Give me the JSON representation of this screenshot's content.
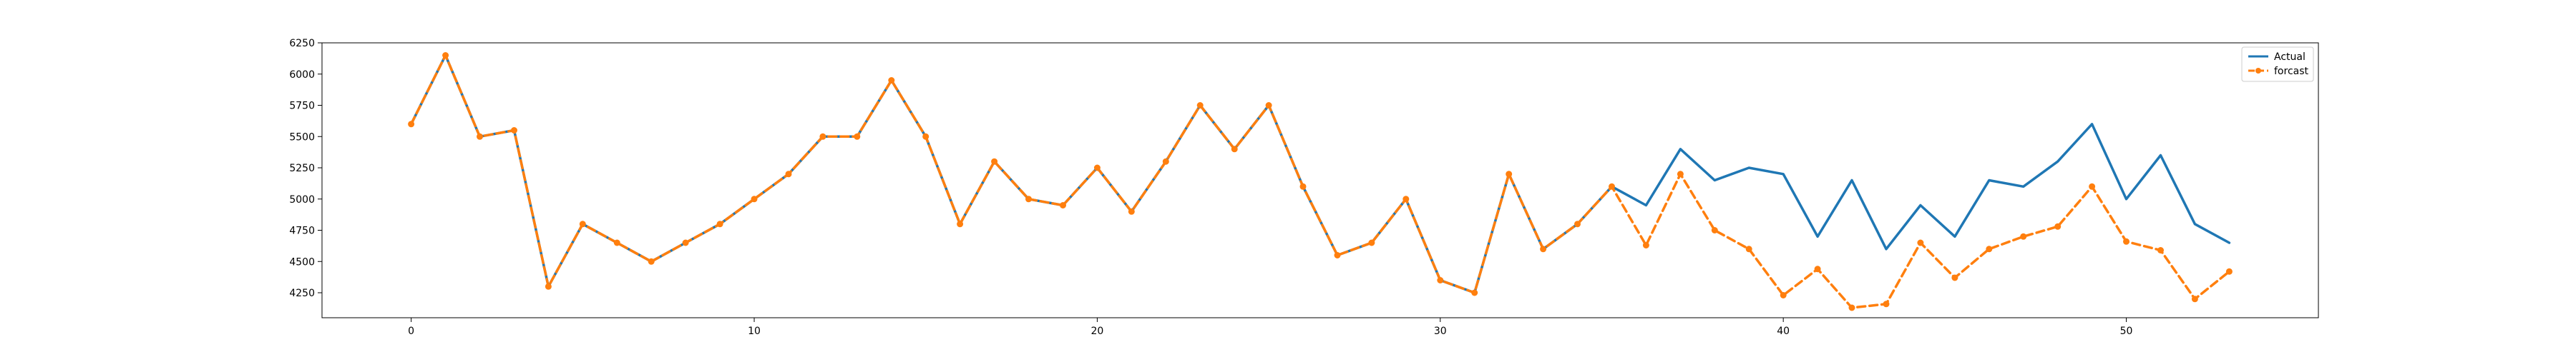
{
  "chart_data": {
    "type": "line",
    "title": "",
    "xlabel": "",
    "ylabel": "",
    "xlim": [
      -2.6,
      55.6
    ],
    "ylim": [
      4050,
      6250
    ],
    "xticks": [
      0,
      10,
      20,
      30,
      40,
      50
    ],
    "yticks": [
      4250,
      4500,
      4750,
      5000,
      5250,
      5500,
      5750,
      6000,
      6250
    ],
    "grid": false,
    "legend": "top-right",
    "series": [
      {
        "name": "Actual",
        "color": "#1f77b4",
        "style": "solid",
        "x": [
          0,
          1,
          2,
          3,
          4,
          5,
          6,
          7,
          8,
          9,
          10,
          11,
          12,
          13,
          14,
          15,
          16,
          17,
          18,
          19,
          20,
          21,
          22,
          23,
          24,
          25,
          26,
          27,
          28,
          29,
          30,
          31,
          32,
          33,
          34,
          35,
          36,
          37,
          38,
          39,
          40,
          41,
          42,
          43,
          44,
          45,
          46,
          47,
          48,
          49,
          50,
          51,
          52,
          53
        ],
        "values": [
          5600,
          6150,
          5500,
          5550,
          4300,
          4800,
          4650,
          4500,
          4650,
          4800,
          5000,
          5200,
          5500,
          5500,
          5950,
          5500,
          4800,
          5300,
          5000,
          4950,
          5250,
          4900,
          5300,
          5750,
          5400,
          5750,
          5100,
          4550,
          4650,
          5000,
          4350,
          4250,
          5200,
          4600,
          4800,
          5100,
          4950,
          5400,
          5150,
          5250,
          5200,
          4700,
          5150,
          4600,
          4950,
          4700,
          5150,
          5100,
          5300,
          5600,
          5000,
          5350,
          4800,
          4650
        ]
      },
      {
        "name": "forcast",
        "color": "#ff7f0e",
        "style": "dashed",
        "marker": "circle",
        "x": [
          0,
          1,
          2,
          3,
          4,
          5,
          6,
          7,
          8,
          9,
          10,
          11,
          12,
          13,
          14,
          15,
          16,
          17,
          18,
          19,
          20,
          21,
          22,
          23,
          24,
          25,
          26,
          27,
          28,
          29,
          30,
          31,
          32,
          33,
          34,
          35,
          36,
          37,
          38,
          39,
          40,
          41,
          42,
          43,
          44,
          45,
          46,
          47,
          48,
          49,
          50,
          51,
          52,
          53
        ],
        "values": [
          5600,
          6150,
          5500,
          5550,
          4300,
          4800,
          4650,
          4500,
          4650,
          4800,
          5000,
          5200,
          5500,
          5500,
          5950,
          5500,
          4800,
          5300,
          5000,
          4950,
          5250,
          4900,
          5300,
          5750,
          5400,
          5750,
          5100,
          4550,
          4650,
          5000,
          4350,
          4250,
          5200,
          4600,
          4800,
          5100,
          4630,
          5200,
          4750,
          4600,
          4230,
          4440,
          4130,
          4160,
          4650,
          4370,
          4600,
          4700,
          4780,
          5100,
          4660,
          4590,
          4200,
          4420
        ]
      }
    ]
  }
}
